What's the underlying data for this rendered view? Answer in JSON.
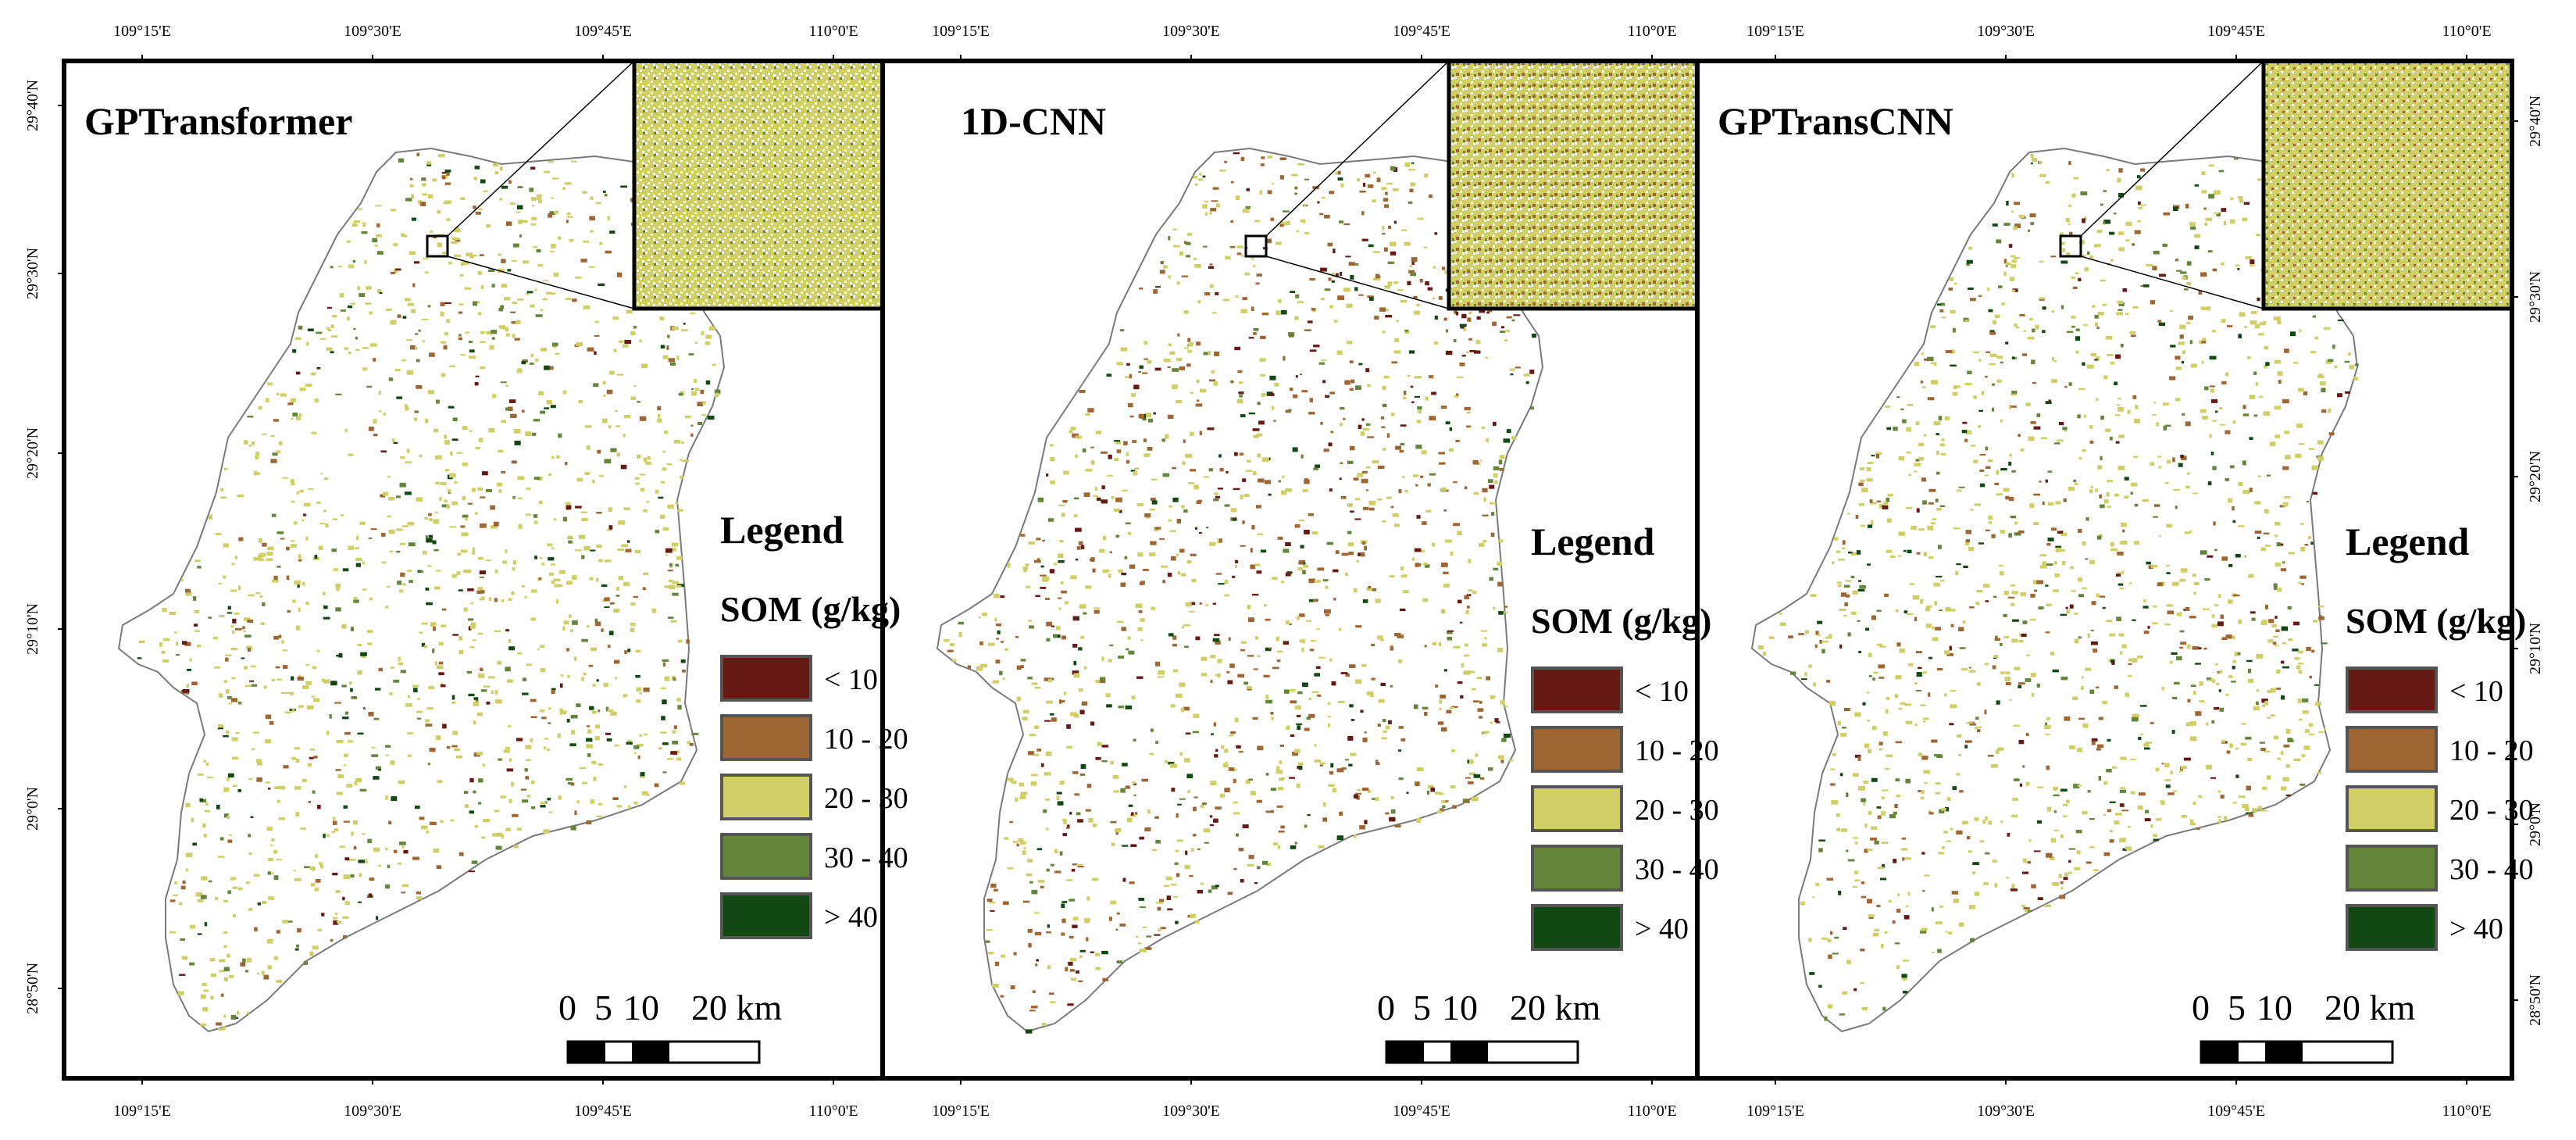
{
  "figure": {
    "top_ticks": [
      "109°15'E",
      "109°30'E",
      "109°45'E",
      "110°0'E"
    ],
    "bottom_ticks": [
      "109°15'E",
      "109°30'E",
      "109°45'E",
      "110°0'E"
    ],
    "right_ticks": [
      "29°40'N",
      "29°30'N",
      "29°20'N",
      "29°10'N",
      "29°0'N",
      "28°50'N"
    ],
    "left_ticks": [
      "29°40'N",
      "29°30'N",
      "29°20'N",
      "29°10'N",
      "29°0'N",
      "28°50'N"
    ]
  },
  "panels": [
    {
      "title": "GPTransformer"
    },
    {
      "title": "1D-CNN"
    },
    {
      "title": "GPTransCNN"
    }
  ],
  "legend": {
    "title": "Legend",
    "subtitle": "SOM (g/kg)",
    "classes": [
      {
        "label": "< 10",
        "color": "#661a14"
      },
      {
        "label": "10 - 20",
        "color": "#9e6633"
      },
      {
        "label": "20 - 30",
        "color": "#cfcf66"
      },
      {
        "label": "30 - 40",
        "color": "#63863a"
      },
      {
        "label": "> 40",
        "color": "#124812"
      }
    ]
  },
  "scalebar": {
    "labels": [
      "0",
      "5",
      "10",
      "20 km"
    ]
  },
  "colors": {
    "outline": "#7a7a7a",
    "frame": "#000000",
    "inset_background": "#ffffff"
  }
}
